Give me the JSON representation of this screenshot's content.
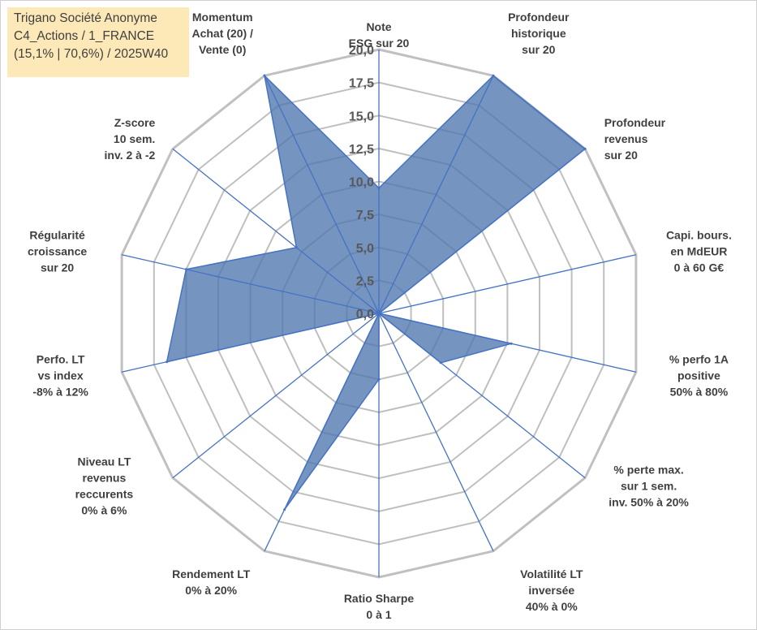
{
  "chart_data": {
    "type": "radar",
    "title_lines": [
      "Trigano Société Anonyme",
      "C4_Actions / 1_FRANCE",
      "(15,1% | 70,6%) / 2025W40"
    ],
    "axes": [
      {
        "label": [
          "Note",
          "ESG sur 20"
        ],
        "value": 9.5
      },
      {
        "label": [
          "Profondeur",
          "historique",
          "sur 20"
        ],
        "value": 20.0
      },
      {
        "label": [
          "Profondeur",
          "revenus",
          "sur 20"
        ],
        "value": 20.0
      },
      {
        "label": [
          "Capi. bours.",
          "en MdEUR",
          "0 à 60 G€"
        ],
        "value": 0.0
      },
      {
        "label": [
          "% perfo 1A",
          "positive",
          "50% à 80%"
        ],
        "value": 10.3
      },
      {
        "label": [
          "% perte max.",
          "sur 1 sem.",
          "inv. 50% à 20%"
        ],
        "value": 6.0
      },
      {
        "label": [
          "Volatilité LT",
          "inversée",
          "40% à 0%"
        ],
        "value": 0.0
      },
      {
        "label": [
          "Ratio Sharpe",
          "0 à 1"
        ],
        "value": 5.0
      },
      {
        "label": [
          "Rendement LT",
          "0% à 20%"
        ],
        "value": 16.5
      },
      {
        "label": [
          "Niveau LT",
          "revenus",
          "reccurents",
          "0% à 6%"
        ],
        "value": 0.0
      },
      {
        "label": [
          "Perfo. LT",
          "vs index",
          "-8% à 12%"
        ],
        "value": 16.5
      },
      {
        "label": [
          "Régularité",
          "croissance",
          "sur 20"
        ],
        "value": 15.0
      },
      {
        "label": [
          "Z-score",
          "10 sem.",
          "inv. 2 à -2"
        ],
        "value": 8.0
      },
      {
        "label": [
          "Momentum",
          "Achat (20) /",
          "Vente (0)"
        ],
        "value": 20.0
      }
    ],
    "rmin": 0,
    "rmax": 20,
    "ticks": [
      "0,0",
      "2,5",
      "5,0",
      "7,5",
      "10,0",
      "12,5",
      "15,0",
      "17,5",
      "20,0"
    ],
    "tick_values": [
      0,
      2.5,
      5,
      7.5,
      10,
      12.5,
      15,
      17.5,
      20
    ],
    "series": [
      {
        "name": "Trigano Société Anonyme",
        "color": "#4f76ae"
      }
    ],
    "fill_color": "#4f76ae",
    "line_color": "#4472c4",
    "grid_color": "#bfbfbf",
    "outer_grid_color": "#c0c0c0"
  }
}
